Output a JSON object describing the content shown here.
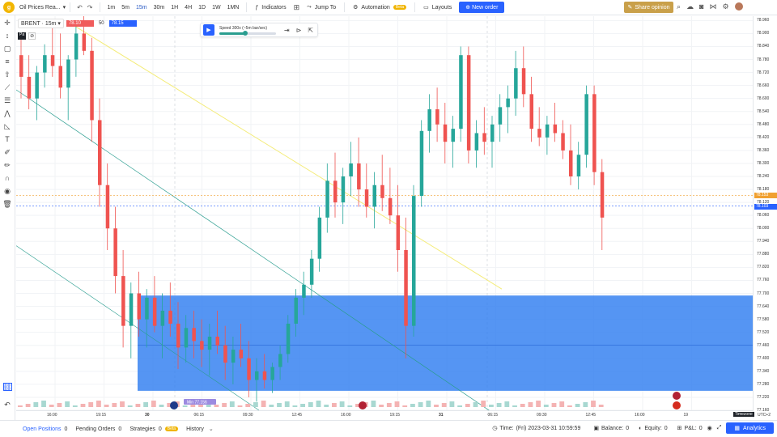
{
  "toolbar": {
    "logo": "g",
    "symbol_name": "Oil Prices Rea...",
    "timeframes": [
      "1m",
      "5m",
      "15m",
      "30m",
      "1H",
      "4H",
      "1D",
      "1W",
      "1MN"
    ],
    "active_timeframe": "15m",
    "indicators_label": "Indicators",
    "jump_to_label": "Jump To",
    "automation_label": "Automation",
    "automation_badge": "Beta",
    "layouts_label": "Layouts",
    "new_order_label": "New order",
    "share_label": "Share opinion",
    "right_icons": [
      "search-icon",
      "cloud-icon",
      "camera-icon",
      "share-icon",
      "settings-icon",
      "avatar-icon"
    ]
  },
  "legend": {
    "symbol": "BRENT",
    "interval": "15m",
    "sell_price": "78.10",
    "spread": "50",
    "buy_price": "78.15",
    "sub_label": "Pa",
    "sub_icon": "hide-icon"
  },
  "replay": {
    "speed_label": "Speed 300x (~5m bar/sec)",
    "speed_fraction": 0.45,
    "icons": [
      "step-forward-icon",
      "play-to-icon",
      "exit-replay-icon"
    ]
  },
  "price_axis": {
    "labels": [
      "78.960",
      "78.900",
      "78.840",
      "78.780",
      "78.720",
      "78.660",
      "78.600",
      "78.540",
      "78.480",
      "78.420",
      "78.360",
      "78.300",
      "78.240",
      "78.180",
      "78.120",
      "78.060",
      "78.000",
      "77.940",
      "77.880",
      "77.820",
      "77.760",
      "77.700",
      "77.640",
      "77.580",
      "77.520",
      "77.460",
      "77.400",
      "77.340",
      "77.280",
      "77.220",
      "77.160"
    ],
    "tag_high": "78.153",
    "tag_low": "78.103",
    "tag_high_color": "#f0a030",
    "tag_low_color": "#2962ff"
  },
  "time_axis": {
    "labels": [
      "16:00",
      "19:15",
      "30",
      "06:15",
      "09:30",
      "12:45",
      "16:00",
      "19:15",
      "31",
      "06:15",
      "09:30",
      "12:45",
      "16:00",
      "19"
    ],
    "timezone_label": "Timezone",
    "utc_label": "UTC+2"
  },
  "chart_annotations": {
    "marker_label": "Min",
    "marker_value": "77.156"
  },
  "chart_data": {
    "type": "candlestick",
    "symbol": "BRENT",
    "interval": "15m",
    "ylim": [
      77.16,
      78.98
    ],
    "x_labels": [
      "16:00",
      "19:15",
      "30",
      "06:15",
      "09:30",
      "12:45",
      "16:00",
      "19:15",
      "31",
      "06:15",
      "09:30",
      "12:45",
      "16:00",
      "19"
    ],
    "candles": [
      [
        78.8,
        78.9,
        78.6,
        78.7
      ],
      [
        78.7,
        78.8,
        78.55,
        78.6
      ],
      [
        78.6,
        78.75,
        78.5,
        78.72
      ],
      [
        78.72,
        78.85,
        78.65,
        78.8
      ],
      [
        78.8,
        78.95,
        78.7,
        78.75
      ],
      [
        78.75,
        78.9,
        78.6,
        78.65
      ],
      [
        78.65,
        78.8,
        78.5,
        78.78
      ],
      [
        78.78,
        78.95,
        78.7,
        78.9
      ],
      [
        78.9,
        78.98,
        78.8,
        78.82
      ],
      [
        78.82,
        78.88,
        78.4,
        78.5
      ],
      [
        78.5,
        78.6,
        78.1,
        78.2
      ],
      [
        78.2,
        78.3,
        77.9,
        78.0
      ],
      [
        78.0,
        78.1,
        77.7,
        77.78
      ],
      [
        77.78,
        77.9,
        77.45,
        77.55
      ],
      [
        77.55,
        77.75,
        77.4,
        77.7
      ],
      [
        77.7,
        77.8,
        77.5,
        77.58
      ],
      [
        77.58,
        77.72,
        77.45,
        77.68
      ],
      [
        77.68,
        77.78,
        77.52,
        77.55
      ],
      [
        77.55,
        77.7,
        77.4,
        77.62
      ],
      [
        77.62,
        77.75,
        77.5,
        77.56
      ],
      [
        77.56,
        77.66,
        77.35,
        77.45
      ],
      [
        77.45,
        77.6,
        77.38,
        77.54
      ],
      [
        77.54,
        77.62,
        77.4,
        77.48
      ],
      [
        77.48,
        77.58,
        77.36,
        77.44
      ],
      [
        77.44,
        77.56,
        77.32,
        77.5
      ],
      [
        77.5,
        77.62,
        77.42,
        77.46
      ],
      [
        77.46,
        77.55,
        77.3,
        77.38
      ],
      [
        77.38,
        77.5,
        77.28,
        77.44
      ],
      [
        77.44,
        77.56,
        77.36,
        77.4
      ],
      [
        77.4,
        77.48,
        77.22,
        77.3
      ],
      [
        77.3,
        77.4,
        77.2,
        77.34
      ],
      [
        77.34,
        77.42,
        77.26,
        77.3
      ],
      [
        77.3,
        77.38,
        77.24,
        77.36
      ],
      [
        77.36,
        77.46,
        77.3,
        77.42
      ],
      [
        77.42,
        77.6,
        77.38,
        77.56
      ],
      [
        77.56,
        77.72,
        77.5,
        77.68
      ],
      [
        77.68,
        77.8,
        77.6,
        77.74
      ],
      [
        77.74,
        77.9,
        77.68,
        77.86
      ],
      [
        77.86,
        78.1,
        77.8,
        78.05
      ],
      [
        78.05,
        78.3,
        77.98,
        78.22
      ],
      [
        78.22,
        78.35,
        78.05,
        78.12
      ],
      [
        78.12,
        78.28,
        78.02,
        78.24
      ],
      [
        78.24,
        78.4,
        78.15,
        78.3
      ],
      [
        78.3,
        78.42,
        78.1,
        78.18
      ],
      [
        78.18,
        78.3,
        78.05,
        78.1
      ],
      [
        78.1,
        78.26,
        78.0,
        78.2
      ],
      [
        78.2,
        78.34,
        78.08,
        78.14
      ],
      [
        78.14,
        78.28,
        78.02,
        78.06
      ],
      [
        78.06,
        78.2,
        77.8,
        77.9
      ],
      [
        77.9,
        78.05,
        77.4,
        77.55
      ],
      [
        77.55,
        78.2,
        77.5,
        78.15
      ],
      [
        78.15,
        78.5,
        78.1,
        78.45
      ],
      [
        78.45,
        78.62,
        78.35,
        78.55
      ],
      [
        78.55,
        78.65,
        78.4,
        78.48
      ],
      [
        78.48,
        78.58,
        78.3,
        78.4
      ],
      [
        78.4,
        78.52,
        78.28,
        78.46
      ],
      [
        78.46,
        78.84,
        78.4,
        78.8
      ],
      [
        78.8,
        78.84,
        78.3,
        78.36
      ],
      [
        78.36,
        78.5,
        78.28,
        78.44
      ],
      [
        78.44,
        78.56,
        78.34,
        78.4
      ],
      [
        78.4,
        78.52,
        78.28,
        78.48
      ],
      [
        78.48,
        78.62,
        78.4,
        78.56
      ],
      [
        78.56,
        78.66,
        78.44,
        78.6
      ],
      [
        78.6,
        78.82,
        78.52,
        78.74
      ],
      [
        78.74,
        78.84,
        78.56,
        78.62
      ],
      [
        78.62,
        78.7,
        78.4,
        78.46
      ],
      [
        78.46,
        78.56,
        78.38,
        78.42
      ],
      [
        78.42,
        78.52,
        78.34,
        78.48
      ],
      [
        78.48,
        78.58,
        78.4,
        78.44
      ],
      [
        78.44,
        78.5,
        78.32,
        78.36
      ],
      [
        78.36,
        78.48,
        78.2,
        78.24
      ],
      [
        78.24,
        78.4,
        78.18,
        78.34
      ],
      [
        78.34,
        78.66,
        78.28,
        78.62
      ],
      [
        78.62,
        78.66,
        78.2,
        78.26
      ],
      [
        78.26,
        78.32,
        77.9,
        78.05
      ]
    ]
  },
  "bottom_bar": {
    "tabs": [
      {
        "label": "Open Positions",
        "count": "0"
      },
      {
        "label": "Pending Orders",
        "count": "0"
      },
      {
        "label": "Strategies",
        "count": "0",
        "badge": "Beta"
      },
      {
        "label": "History",
        "count": ""
      }
    ],
    "time_label": "Time:",
    "time_value": "(Fri) 2023-03-31 10:59:59",
    "balance_label": "Balance:",
    "balance_value": "0",
    "equity_label": "Equity:",
    "equity_value": "0",
    "pnl_label": "P&L:",
    "pnl_value": "0",
    "analytics_label": "Analytics"
  },
  "colors": {
    "bull": "#26a69a",
    "bear": "#ef5350",
    "zone": "#2f7ef0",
    "accent": "#2962ff",
    "share": "#c9a04a"
  }
}
